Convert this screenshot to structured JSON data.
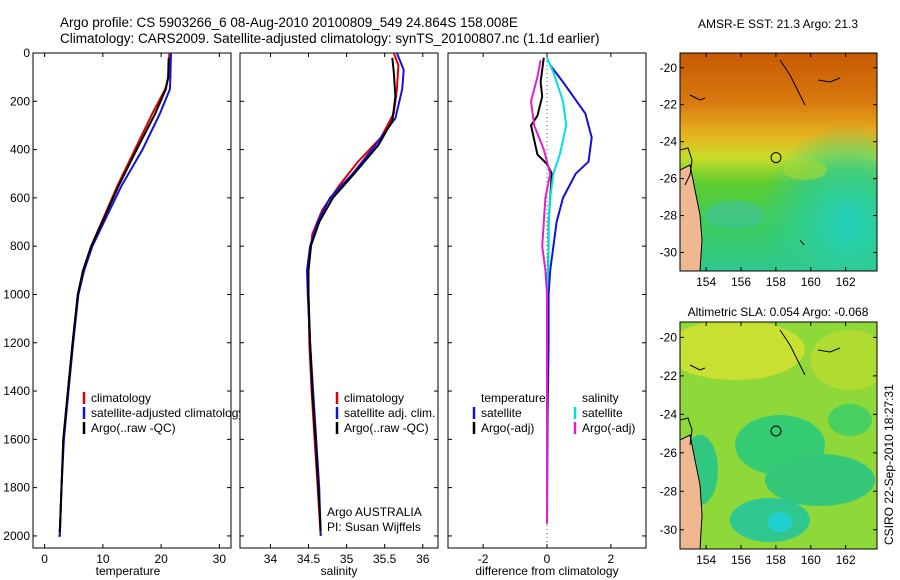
{
  "header": {
    "line1": "Argo profile: CS 5903266_6 08-Aug-2010 20100809_549 24.864S 158.008E",
    "line2": "Climatology: CARS2009. Satellite-adjusted climatology: synTS_20100807.nc (1.1d earlier)"
  },
  "side_text": "CSIRO 22-Sep-2010 18:27:31",
  "colors": {
    "climatology": "#e00000",
    "satellite": "#1010e0",
    "argo": "#000000",
    "satellite_sal": "#00e0e0",
    "argo_sal": "#e020d0"
  },
  "chart_data": [
    {
      "type": "line",
      "name": "temperature",
      "xlabel": "temperature",
      "ylabel": "",
      "xlim": [
        -2,
        32
      ],
      "ylim": [
        0,
        2050
      ],
      "yreverse": true,
      "xticks": [
        0,
        10,
        20,
        30
      ],
      "yticks": [
        0,
        200,
        400,
        600,
        800,
        1000,
        1200,
        1400,
        1600,
        1800,
        2000
      ],
      "legend": [
        "climatology",
        "satellite-adjusted climatology",
        "Argo(..raw -QC)"
      ],
      "series": [
        {
          "name": "climatology",
          "color": "#e00000",
          "x": [
            21.4,
            21.3,
            20.7,
            18.5,
            15.5,
            12.5,
            9.8,
            8,
            6.6,
            5.7,
            4.8,
            4,
            3.2,
            2.9,
            2.6,
            2.4
          ],
          "y": [
            0,
            100,
            150,
            250,
            400,
            550,
            700,
            800,
            900,
            1000,
            1200,
            1400,
            1600,
            1800,
            2000,
            2000
          ]
        },
        {
          "name": "satellite-adjusted climatology",
          "color": "#1010e0",
          "x": [
            21.7,
            21.6,
            21.5,
            19.8,
            16.8,
            13.2,
            10.2,
            8.2,
            6.8,
            5.8,
            4.9,
            4.1,
            3.3,
            2.9,
            2.6,
            2.4
          ],
          "y": [
            0,
            100,
            150,
            250,
            400,
            550,
            700,
            800,
            900,
            1000,
            1200,
            1400,
            1600,
            1800,
            2000,
            2000
          ]
        },
        {
          "name": "Argo(..raw -QC)",
          "color": "#000000",
          "x": [
            21.3,
            21.2,
            20.8,
            19,
            15.8,
            12.7,
            9.9,
            8,
            6.6,
            5.7,
            4.8,
            4,
            3.2,
            2.9,
            2.6,
            2.4
          ],
          "y": [
            20,
            100,
            150,
            250,
            400,
            550,
            700,
            800,
            900,
            1000,
            1200,
            1400,
            1600,
            1800,
            1980,
            1980
          ]
        }
      ]
    },
    {
      "type": "line",
      "name": "salinity",
      "xlabel": "salinity",
      "xlim": [
        33.6,
        36.2
      ],
      "ylim": [
        0,
        2050
      ],
      "yreverse": true,
      "xticks": [
        34,
        34.5,
        35,
        35.5,
        36
      ],
      "legend": [
        "climatology",
        "satellite adj. clim.",
        "Argo(..raw -QC)"
      ],
      "annotation": [
        "Argo AUSTRALIA",
        "PI: Susan Wijffels"
      ],
      "series": [
        {
          "name": "climatology",
          "color": "#e00000",
          "x": [
            35.62,
            35.68,
            35.66,
            35.62,
            35.45,
            35.15,
            34.9,
            34.68,
            34.55,
            34.5,
            34.5,
            34.51,
            34.54,
            34.58,
            34.62,
            34.66
          ],
          "y": [
            0,
            50,
            150,
            250,
            350,
            450,
            550,
            650,
            750,
            900,
            1000,
            1200,
            1400,
            1600,
            1800,
            2000
          ]
        },
        {
          "name": "satellite adj. clim.",
          "color": "#1010e0",
          "x": [
            35.66,
            35.75,
            35.73,
            35.64,
            35.38,
            35.08,
            34.78,
            34.62,
            34.52,
            34.48,
            34.49,
            34.52,
            34.56,
            34.6,
            34.64,
            34.66
          ],
          "y": [
            0,
            70,
            150,
            270,
            380,
            500,
            600,
            700,
            800,
            900,
            1000,
            1200,
            1400,
            1600,
            1800,
            2000
          ]
        },
        {
          "name": "Argo(..raw -QC)",
          "color": "#000000",
          "x": [
            35.6,
            35.62,
            35.64,
            35.6,
            35.42,
            35.1,
            34.82,
            34.64,
            34.53,
            34.5,
            34.5,
            34.52,
            34.55,
            34.59,
            34.63,
            34.66
          ],
          "y": [
            20,
            80,
            180,
            280,
            380,
            500,
            600,
            700,
            800,
            900,
            1000,
            1200,
            1400,
            1600,
            1800,
            1980
          ]
        }
      ]
    },
    {
      "type": "line",
      "name": "difference",
      "xlabel": "difference from climatology",
      "xlim": [
        -3.1,
        3.1
      ],
      "ylim": [
        0,
        2050
      ],
      "yreverse": true,
      "xticks": [
        -2,
        0,
        2
      ],
      "legend": [
        "temperature",
        "satellite",
        "Argo(-adj)",
        "salinity",
        "satellite",
        "Argo(-adj)"
      ],
      "series": [
        {
          "name": "temperature satellite",
          "color": "#1010e0",
          "x": [
            0.1,
            0.5,
            1.2,
            1.4,
            1.3,
            0.9,
            0.5,
            0.3,
            0.2,
            0.1,
            0.05,
            0.05,
            0.02,
            0
          ],
          "y": [
            50,
            120,
            250,
            350,
            450,
            500,
            600,
            700,
            800,
            900,
            1000,
            1200,
            1500,
            1950
          ]
        },
        {
          "name": "temperature Argo(-adj)",
          "color": "#000000",
          "x": [
            -0.1,
            -0.2,
            -0.15,
            -0.3,
            -0.5,
            -0.4,
            -0.3,
            0,
            0.15,
            0.1,
            0.05,
            0.05,
            0.03,
            0,
            0
          ],
          "y": [
            20,
            120,
            180,
            260,
            300,
            360,
            420,
            460,
            500,
            600,
            700,
            800,
            900,
            1000,
            1950
          ]
        },
        {
          "name": "salinity satellite",
          "color": "#00e0e0",
          "x": [
            0,
            0.2,
            0.5,
            0.6,
            0.4,
            0.2,
            0.1,
            0.05,
            0.05,
            0.03,
            0,
            0
          ],
          "y": [
            20,
            80,
            200,
            300,
            420,
            500,
            600,
            700,
            800,
            900,
            1000,
            1950
          ]
        },
        {
          "name": "salinity Argo(-adj)",
          "color": "#e020d0",
          "x": [
            -0.2,
            -0.3,
            -0.5,
            -0.4,
            -0.1,
            0.1,
            -0.05,
            -0.1,
            -0.15,
            -0.05,
            0,
            0
          ],
          "y": [
            30,
            100,
            200,
            300,
            400,
            500,
            600,
            700,
            800,
            900,
            1000,
            1950
          ]
        }
      ]
    },
    {
      "type": "heatmap",
      "name": "sst_map",
      "title": "AMSR-E SST: 21.3 Argo: 21.3",
      "xticks": [
        154,
        156,
        158,
        160,
        162
      ],
      "yticks": [
        -20,
        -22,
        -24,
        -26,
        -28,
        -30
      ],
      "xlim": [
        152.5,
        163.8
      ],
      "ylim": [
        -31,
        -19.2
      ],
      "marker": {
        "lon": 158.008,
        "lat": -24.864
      }
    },
    {
      "type": "heatmap",
      "name": "sla_map",
      "title": "Altimetric SLA: 0.054 Argo: -0.068",
      "xticks": [
        154,
        156,
        158,
        160,
        162
      ],
      "yticks": [
        -20,
        -22,
        -24,
        -26,
        -28,
        -30
      ],
      "xlim": [
        152.5,
        163.8
      ],
      "ylim": [
        -31,
        -19.2
      ],
      "marker": {
        "lon": 158.008,
        "lat": -24.864
      }
    }
  ]
}
